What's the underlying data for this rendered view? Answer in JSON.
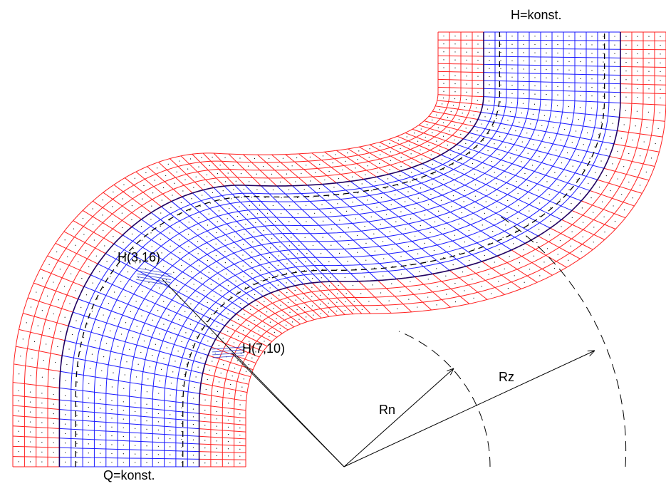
{
  "labels": {
    "top": "H=konst.",
    "bottom": "Q=konst.",
    "cell_a": "H(3,16)",
    "cell_b": "H(7,10)",
    "radius_n": "Rn",
    "radius_z": "Rz"
  }
}
